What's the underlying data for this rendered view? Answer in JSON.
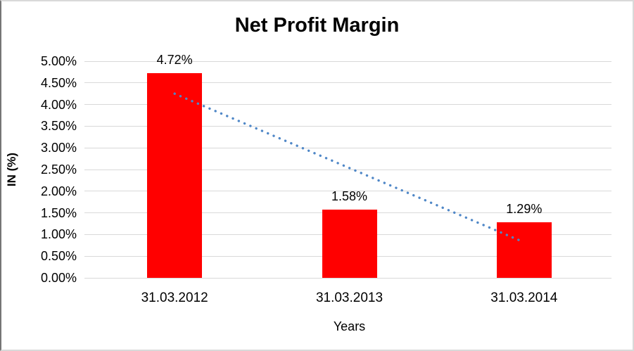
{
  "chart_data": {
    "type": "bar",
    "title": "Net Profit Margin",
    "xlabel": "Years",
    "ylabel": "IN (%)",
    "categories": [
      "31.03.2012",
      "31.03.2013",
      "31.03.2014"
    ],
    "values": [
      4.72,
      1.58,
      1.29
    ],
    "data_labels": [
      "4.72%",
      "1.58%",
      "1.29%"
    ],
    "ylim": [
      0,
      5
    ],
    "ytick_step": 0.5,
    "ytick_labels": [
      "0.00%",
      "0.50%",
      "1.00%",
      "1.50%",
      "2.00%",
      "2.50%",
      "3.00%",
      "3.50%",
      "4.00%",
      "4.50%",
      "5.00%"
    ],
    "grid": true,
    "legend": "none",
    "bar_color": "#ff0000",
    "gridline_color": "#d9d9d9",
    "trendline": {
      "style": "dotted",
      "color": "#4f87c7",
      "start_value": 4.25,
      "end_value": 0.82
    }
  }
}
